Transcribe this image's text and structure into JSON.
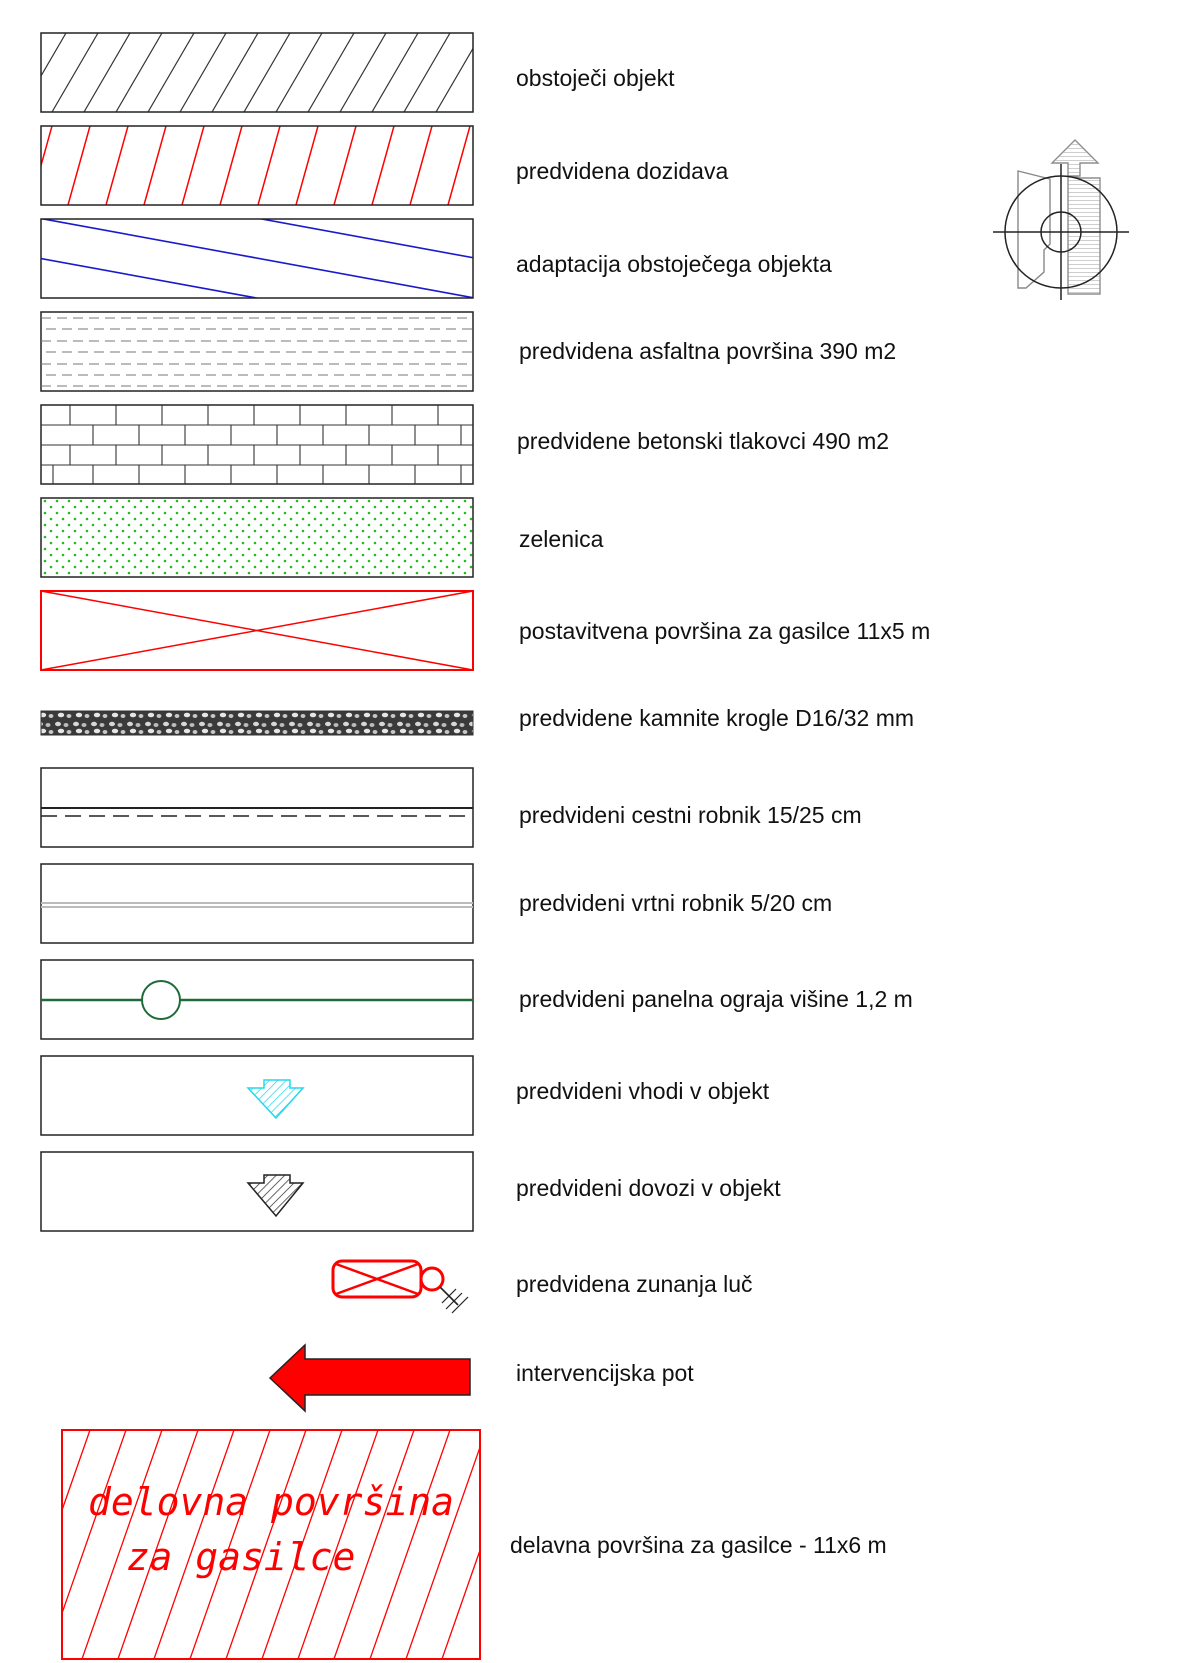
{
  "legend": {
    "items": [
      {
        "label": "obstoječi objekt"
      },
      {
        "label": "predvidena dozidava"
      },
      {
        "label": "adaptacija obstoječega objekta"
      },
      {
        "label": "predvidena asfaltna površina 390 m2"
      },
      {
        "label": "predvidene betonski tlakovci  490 m2"
      },
      {
        "label": "zelenica"
      },
      {
        "label": "postavitvena površina za gasilce 11x5 m"
      },
      {
        "label": "predvidene kamnite krogle D16/32 mm"
      },
      {
        "label": "predvideni cestni robnik 15/25 cm"
      },
      {
        "label": "predvideni vrtni robnik 5/20 cm"
      },
      {
        "label": "predvideni panelna ograja višine 1,2 m"
      },
      {
        "label": "predvideni vhodi v objekt"
      },
      {
        "label": "predvideni dovozi v objekt"
      },
      {
        "label": "predvidena zunanja luč"
      },
      {
        "label": "intervencijska pot"
      },
      {
        "label": "delavna površina za gasilce - 11x6 m"
      }
    ],
    "work_area_text": {
      "line1": "delovna površina",
      "line2": "za gasilce"
    }
  },
  "colors": {
    "black": "#222222",
    "red": "#ff0000",
    "blue": "#1a1acc",
    "green": "#22bb22",
    "dark_green": "#1f6b3a",
    "cyan": "#33e0f0",
    "grey": "#888888"
  },
  "icons": {
    "north_arrow": "north-arrow-icon"
  }
}
